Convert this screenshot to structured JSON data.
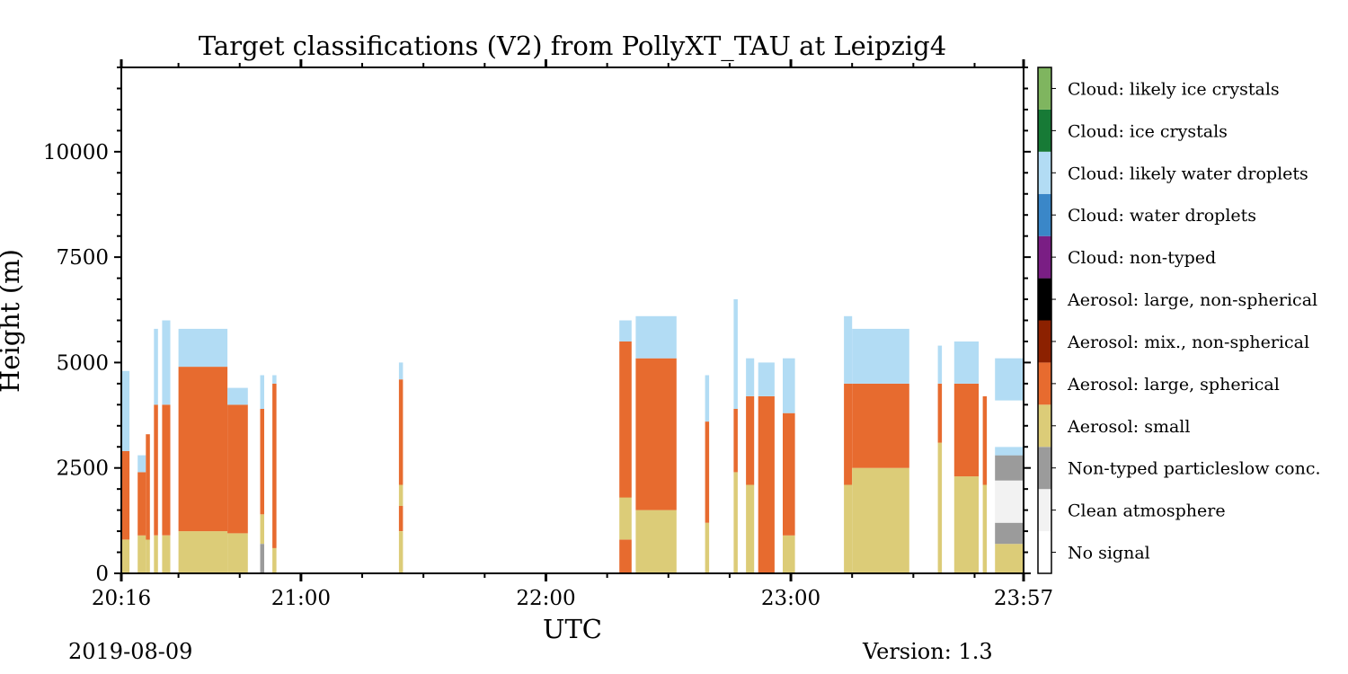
{
  "chart_data": {
    "type": "heatmap",
    "title": "Target classifications (V2) from PollyXT_TAU at Leipzig4",
    "xlabel": "UTC",
    "ylabel": "Height (m)",
    "xlim": [
      "20:16",
      "23:57"
    ],
    "ylim": [
      0,
      12000
    ],
    "x_ticks": [
      "20:16",
      "21:00",
      "22:00",
      "23:00",
      "23:57"
    ],
    "y_ticks": [
      0,
      2500,
      5000,
      7500,
      10000
    ],
    "grid": false,
    "legend": "colorbar-right",
    "categories": [
      {
        "label": "No signal",
        "color": "#ffffff"
      },
      {
        "label": "Clean atmosphere",
        "color": "#f2f2f2"
      },
      {
        "label": "Non-typed particleslow conc.",
        "color": "#9b9b9b"
      },
      {
        "label": "Aerosol: small",
        "color": "#dccc78"
      },
      {
        "label": "Aerosol: large, spherical",
        "color": "#e76b2f"
      },
      {
        "label": "Aerosol: mix., non-spherical",
        "color": "#8c2100"
      },
      {
        "label": "Aerosol: large, non-spherical",
        "color": "#000000"
      },
      {
        "label": "Cloud: non-typed",
        "color": "#7a1e84"
      },
      {
        "label": "Cloud: water droplets",
        "color": "#3a87c8"
      },
      {
        "label": "Cloud: likely water droplets",
        "color": "#b2dcf4"
      },
      {
        "label": "Cloud: ice crystals",
        "color": "#177a36"
      },
      {
        "label": "Cloud: likely ice crystals",
        "color": "#7fb55f"
      }
    ],
    "columns_description_units": "time in UTC, heights in m; segments listed bottom-up as [class index, top height m]",
    "columns": [
      {
        "start": "20:16",
        "end": "20:18",
        "segments": [
          [
            3,
            800
          ],
          [
            4,
            2900
          ],
          [
            9,
            4800
          ]
        ]
      },
      {
        "start": "20:20",
        "end": "20:22",
        "segments": [
          [
            3,
            900
          ],
          [
            4,
            2400
          ],
          [
            9,
            2800
          ]
        ]
      },
      {
        "start": "20:22",
        "end": "20:23",
        "segments": [
          [
            3,
            800
          ],
          [
            4,
            3300
          ]
        ]
      },
      {
        "start": "20:24",
        "end": "20:25",
        "segments": [
          [
            3,
            900
          ],
          [
            4,
            4000
          ],
          [
            9,
            5800
          ]
        ]
      },
      {
        "start": "20:26",
        "end": "20:28",
        "segments": [
          [
            3,
            900
          ],
          [
            4,
            4000
          ],
          [
            9,
            6000
          ]
        ]
      },
      {
        "start": "20:30",
        "end": "20:42",
        "segments": [
          [
            3,
            1000
          ],
          [
            4,
            4900
          ],
          [
            9,
            5800
          ]
        ]
      },
      {
        "start": "20:42",
        "end": "20:47",
        "segments": [
          [
            3,
            950
          ],
          [
            4,
            4000
          ],
          [
            9,
            4400
          ]
        ]
      },
      {
        "start": "20:50",
        "end": "20:51",
        "segments": [
          [
            2,
            700
          ],
          [
            3,
            1400
          ],
          [
            4,
            3900
          ],
          [
            9,
            4700
          ]
        ]
      },
      {
        "start": "20:53",
        "end": "20:54",
        "segments": [
          [
            3,
            600
          ],
          [
            4,
            4500
          ],
          [
            9,
            4700
          ]
        ]
      },
      {
        "start": "21:24",
        "end": "21:25",
        "segments": [
          [
            3,
            1000
          ],
          [
            4,
            1600
          ],
          [
            3,
            2100
          ],
          [
            4,
            4600
          ],
          [
            9,
            5000
          ]
        ]
      },
      {
        "start": "22:18",
        "end": "22:21",
        "segments": [
          [
            4,
            800
          ],
          [
            3,
            1800
          ],
          [
            4,
            5500
          ],
          [
            9,
            6000
          ]
        ]
      },
      {
        "start": "22:22",
        "end": "22:32",
        "segments": [
          [
            3,
            1500
          ],
          [
            4,
            5100
          ],
          [
            9,
            6100
          ]
        ]
      },
      {
        "start": "22:39",
        "end": "22:40",
        "segments": [
          [
            3,
            1200
          ],
          [
            4,
            3600
          ],
          [
            9,
            4700
          ]
        ]
      },
      {
        "start": "22:46",
        "end": "22:47",
        "segments": [
          [
            3,
            2400
          ],
          [
            4,
            3900
          ],
          [
            9,
            6500
          ]
        ]
      },
      {
        "start": "22:49",
        "end": "22:51",
        "segments": [
          [
            3,
            2100
          ],
          [
            4,
            4200
          ],
          [
            9,
            5100
          ]
        ]
      },
      {
        "start": "22:52",
        "end": "22:56",
        "segments": [
          [
            4,
            4200
          ],
          [
            9,
            5000
          ]
        ]
      },
      {
        "start": "22:58",
        "end": "23:01",
        "segments": [
          [
            3,
            900
          ],
          [
            4,
            3800
          ],
          [
            9,
            5100
          ]
        ]
      },
      {
        "start": "23:13",
        "end": "23:15",
        "segments": [
          [
            3,
            2100
          ],
          [
            4,
            4500
          ],
          [
            9,
            6100
          ]
        ]
      },
      {
        "start": "23:15",
        "end": "23:29",
        "segments": [
          [
            3,
            2500
          ],
          [
            4,
            4500
          ],
          [
            9,
            5800
          ]
        ]
      },
      {
        "start": "23:36",
        "end": "23:37",
        "segments": [
          [
            3,
            3100
          ],
          [
            4,
            4500
          ],
          [
            9,
            5400
          ]
        ]
      },
      {
        "start": "23:40",
        "end": "23:46",
        "segments": [
          [
            3,
            2300
          ],
          [
            4,
            4500
          ],
          [
            9,
            5500
          ]
        ]
      },
      {
        "start": "23:47",
        "end": "23:48",
        "segments": [
          [
            3,
            2100
          ],
          [
            4,
            4200
          ]
        ]
      },
      {
        "start": "23:50",
        "end": "23:57",
        "segments": [
          [
            3,
            700
          ],
          [
            2,
            1200
          ],
          [
            1,
            2200
          ],
          [
            2,
            2800
          ],
          [
            9,
            3000
          ],
          [
            0,
            4100
          ],
          [
            9,
            5100
          ]
        ]
      }
    ]
  },
  "footer": {
    "date": "2019-08-09",
    "version": "Version: 1.3"
  }
}
